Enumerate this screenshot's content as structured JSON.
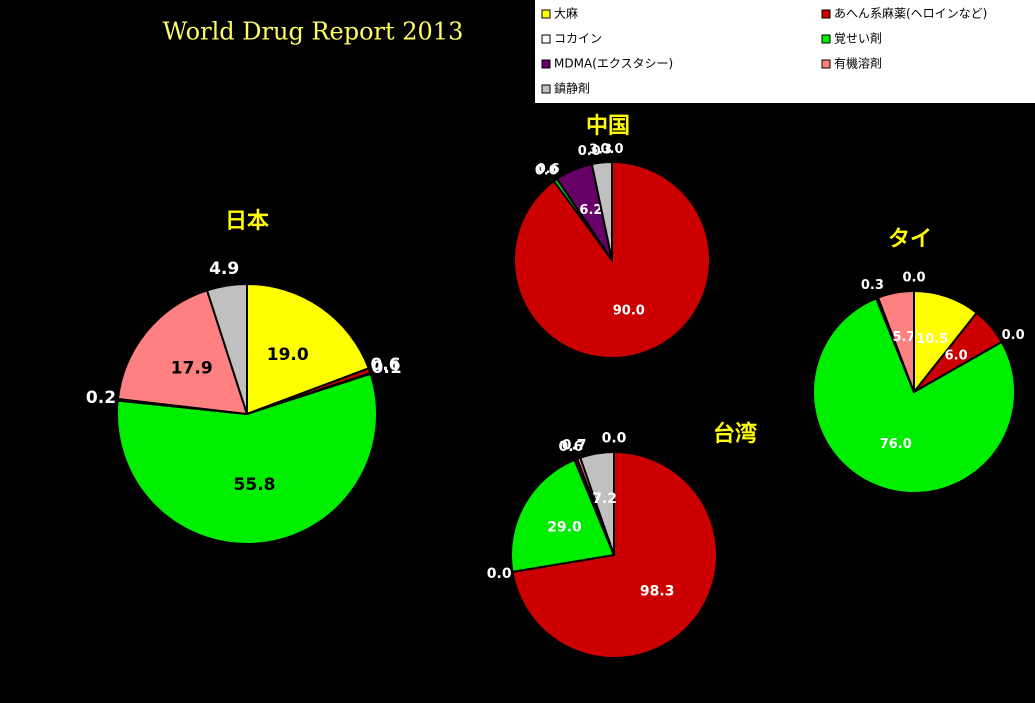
{
  "title": "World Drug Report 2013",
  "legend": [
    {
      "name": "大麻",
      "color": "#ffff00"
    },
    {
      "name": "あへん系麻薬(ヘロインなど)",
      "color": "#cc0000"
    },
    {
      "name": "コカイン",
      "color": "#ffffff"
    },
    {
      "name": "覚せい剤",
      "color": "#00ee00"
    },
    {
      "name": "MDMA(エクスタシー)",
      "color": "#660066"
    },
    {
      "name": "有機溶剤",
      "color": "#ff8080"
    },
    {
      "name": "鎮静剤",
      "color": "#c0c0c0"
    }
  ],
  "chart_data": [
    {
      "type": "pie",
      "title": "日本",
      "values": [
        19.0,
        0.6,
        0.1,
        55.8,
        0.2,
        17.9,
        4.9
      ],
      "value_labels": [
        "19.0",
        "0.6",
        "0.1",
        "55.8",
        "0.2",
        "17.9",
        "4.9"
      ]
    },
    {
      "type": "pie",
      "title": "中国",
      "values": [
        0.0,
        90.0,
        0.0,
        0.6,
        6.2,
        0.0,
        3.3
      ],
      "value_labels": [
        "0.0",
        "90.0",
        "0.0",
        "0.6",
        "6.2",
        "0.0",
        "3.3"
      ]
    },
    {
      "type": "pie",
      "title": "台湾",
      "values": [
        0.0,
        98.3,
        0.0,
        29.0,
        0.6,
        0.7,
        7.2
      ],
      "value_labels": [
        "0.0",
        "98.3",
        "0.0",
        "29.0",
        "0.6",
        "0.7",
        "7.2"
      ]
    },
    {
      "type": "pie",
      "title": "タイ",
      "values": [
        10.5,
        6.0,
        0.0,
        76.0,
        0.3,
        5.7,
        0.0
      ],
      "value_labels": [
        "10.5",
        "6.0",
        "0.0",
        "76.0",
        "0.3",
        "5.7",
        "0.0"
      ]
    }
  ]
}
